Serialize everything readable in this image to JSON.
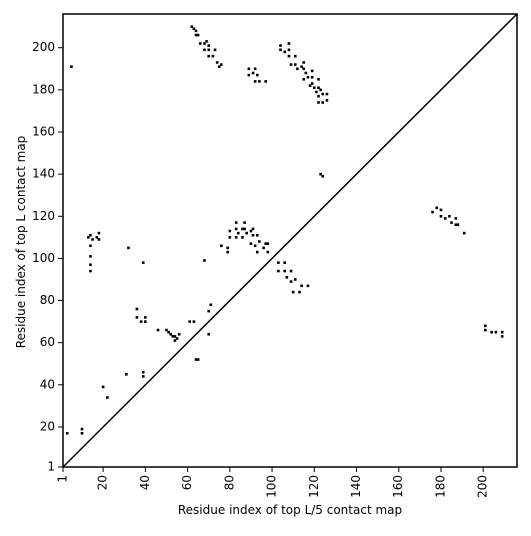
{
  "chart_data": {
    "type": "scatter",
    "xlabel": "Residue index of top L/5 contact map",
    "ylabel": "Residue index of top L contact map",
    "xlim": [
      1,
      216
    ],
    "ylim": [
      1,
      216
    ],
    "x_ticks": [
      1,
      20,
      40,
      60,
      80,
      100,
      120,
      140,
      160,
      180,
      200
    ],
    "y_ticks": [
      1,
      20,
      40,
      60,
      80,
      100,
      120,
      140,
      160,
      180,
      200
    ],
    "diagonal": true,
    "grid": false,
    "marker_color": "#000000",
    "upper_triangle_points": [
      [
        62,
        210
      ],
      [
        63,
        209
      ],
      [
        64,
        208
      ],
      [
        64,
        206
      ],
      [
        65,
        206
      ],
      [
        66,
        202
      ],
      [
        68,
        202
      ],
      [
        69,
        203
      ],
      [
        70,
        201
      ],
      [
        68,
        199
      ],
      [
        70,
        199
      ],
      [
        73,
        199
      ],
      [
        70,
        196
      ],
      [
        72,
        196
      ],
      [
        74,
        193
      ],
      [
        75,
        191
      ],
      [
        76,
        192
      ],
      [
        89,
        190
      ],
      [
        92,
        190
      ],
      [
        89,
        187
      ],
      [
        91,
        188
      ],
      [
        93,
        187
      ],
      [
        92,
        184
      ],
      [
        94,
        184
      ],
      [
        97,
        184
      ],
      [
        104,
        201
      ],
      [
        108,
        202
      ],
      [
        104,
        199
      ],
      [
        106,
        198
      ],
      [
        108,
        199
      ],
      [
        108,
        196
      ],
      [
        111,
        196
      ],
      [
        109,
        192
      ],
      [
        111,
        192
      ],
      [
        112,
        190
      ],
      [
        114,
        191
      ],
      [
        115,
        193
      ],
      [
        115,
        190
      ],
      [
        116,
        188
      ],
      [
        115,
        185
      ],
      [
        117,
        186
      ],
      [
        119,
        189
      ],
      [
        119,
        186
      ],
      [
        119,
        183
      ],
      [
        122,
        185
      ],
      [
        118,
        182
      ],
      [
        120,
        181
      ],
      [
        122,
        181
      ],
      [
        121,
        179
      ],
      [
        123,
        180
      ],
      [
        122,
        177
      ],
      [
        124,
        178
      ],
      [
        126,
        178
      ],
      [
        122,
        174
      ],
      [
        124,
        174
      ],
      [
        126,
        175
      ],
      [
        123,
        140
      ],
      [
        124,
        139
      ],
      [
        5,
        191
      ],
      [
        31,
        45
      ]
    ],
    "lower_triangle_points": [
      [
        13,
        110
      ],
      [
        14,
        111
      ],
      [
        15,
        109
      ],
      [
        17,
        110
      ],
      [
        18,
        109
      ],
      [
        18,
        112
      ],
      [
        14,
        106
      ],
      [
        14,
        101
      ],
      [
        14,
        97
      ],
      [
        14,
        94
      ],
      [
        32,
        105
      ],
      [
        39,
        98
      ],
      [
        46,
        66
      ],
      [
        36,
        76
      ],
      [
        36,
        72
      ],
      [
        38,
        70
      ],
      [
        40,
        72
      ],
      [
        40,
        70
      ],
      [
        39,
        46
      ],
      [
        39,
        44
      ],
      [
        50,
        66
      ],
      [
        51,
        65
      ],
      [
        52,
        64
      ],
      [
        53,
        63
      ],
      [
        54,
        63
      ],
      [
        54,
        61
      ],
      [
        55,
        62
      ],
      [
        56,
        64
      ],
      [
        61,
        70
      ],
      [
        63,
        70
      ],
      [
        64,
        52
      ],
      [
        65,
        52
      ],
      [
        70,
        64
      ],
      [
        70,
        75
      ],
      [
        71,
        78
      ],
      [
        68,
        99
      ],
      [
        76,
        106
      ],
      [
        79,
        105
      ],
      [
        79,
        103
      ],
      [
        80,
        110
      ],
      [
        80,
        113
      ],
      [
        83,
        117
      ],
      [
        87,
        117
      ],
      [
        83,
        114
      ],
      [
        84,
        112
      ],
      [
        86,
        114
      ],
      [
        87,
        114
      ],
      [
        88,
        112
      ],
      [
        83,
        110
      ],
      [
        86,
        110
      ],
      [
        90,
        113
      ],
      [
        91,
        114
      ],
      [
        91,
        111
      ],
      [
        93,
        111
      ],
      [
        90,
        107
      ],
      [
        92,
        106
      ],
      [
        94,
        108
      ],
      [
        93,
        103
      ],
      [
        96,
        105
      ],
      [
        98,
        103
      ],
      [
        97,
        107
      ],
      [
        98,
        107
      ],
      [
        103,
        98
      ],
      [
        103,
        94
      ],
      [
        106,
        98
      ],
      [
        106,
        94
      ],
      [
        107,
        91
      ],
      [
        109,
        94
      ],
      [
        109,
        89
      ],
      [
        111,
        90
      ],
      [
        110,
        84
      ],
      [
        113,
        84
      ],
      [
        114,
        87
      ],
      [
        117,
        87
      ],
      [
        176,
        122
      ],
      [
        178,
        124
      ],
      [
        180,
        123
      ],
      [
        180,
        120
      ],
      [
        182,
        119
      ],
      [
        184,
        120
      ],
      [
        185,
        117
      ],
      [
        187,
        116
      ],
      [
        188,
        116
      ],
      [
        187,
        119
      ],
      [
        191,
        112
      ],
      [
        201,
        68
      ],
      [
        201,
        66
      ],
      [
        204,
        65
      ],
      [
        206,
        65
      ],
      [
        209,
        65
      ],
      [
        209,
        63
      ],
      [
        20,
        39
      ],
      [
        22,
        34
      ],
      [
        3,
        17
      ],
      [
        10,
        17
      ],
      [
        10,
        19
      ]
    ]
  }
}
